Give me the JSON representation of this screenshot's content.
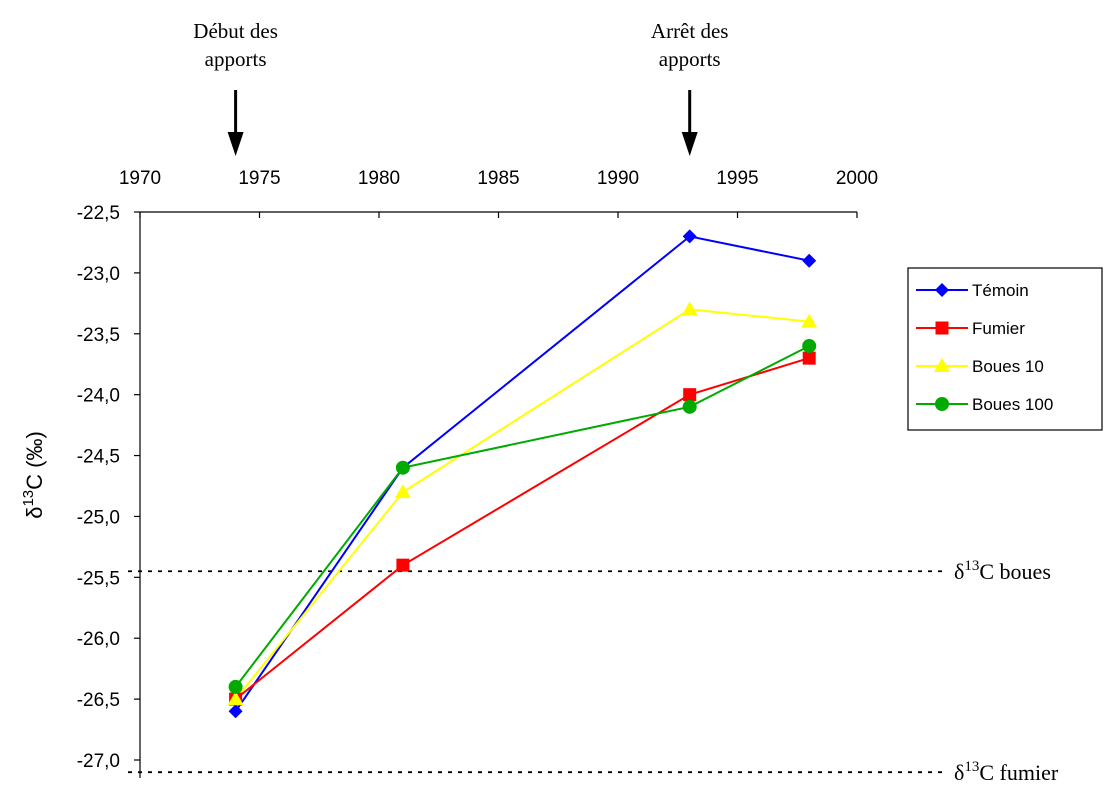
{
  "chart_data": {
    "type": "line",
    "ylabel": "δ13C (‰)",
    "ylabel_parts": {
      "base": "δ",
      "sup": "13",
      "rest": "C (‰)"
    },
    "x_axis_position": "top",
    "xlim": [
      1970,
      2000
    ],
    "xticks": [
      1970,
      1975,
      1980,
      1985,
      1990,
      1995,
      2000
    ],
    "ylim": [
      -27.0,
      -22.5
    ],
    "yticks": [
      "-22,5",
      "-23,0",
      "-23,5",
      "-24,0",
      "-24,5",
      "-25,0",
      "-25,5",
      "-26,0",
      "-26,5",
      "-27,0"
    ],
    "ytick_values": [
      -22.5,
      -23.0,
      -23.5,
      -24.0,
      -24.5,
      -25.0,
      -25.5,
      -26.0,
      -26.5,
      -27.0
    ],
    "grid": false,
    "legend_position": "right",
    "series": [
      {
        "name": "Témoin",
        "color": "#0000ff",
        "marker": "diamond",
        "x": [
          1974,
          1981,
          1993,
          1998
        ],
        "y": [
          -26.6,
          -24.6,
          -22.7,
          -22.9
        ]
      },
      {
        "name": "Fumier",
        "color": "#ff0000",
        "marker": "square",
        "x": [
          1974,
          1981,
          1993,
          1998
        ],
        "y": [
          -26.5,
          -25.4,
          -24.0,
          -23.7
        ]
      },
      {
        "name": "Boues 10",
        "color": "#ffff00",
        "marker": "triangle",
        "x": [
          1974,
          1981,
          1993,
          1998
        ],
        "y": [
          -26.5,
          -24.8,
          -23.3,
          -23.4
        ]
      },
      {
        "name": "Boues 100",
        "color": "#00aa00",
        "marker": "circle",
        "x": [
          1974,
          1981,
          1993,
          1998
        ],
        "y": [
          -26.4,
          -24.6,
          -24.1,
          -23.6
        ]
      }
    ],
    "reference_lines": [
      {
        "label_base": "δ",
        "label_sup": "13",
        "label_rest": "C boues",
        "y": -25.45
      },
      {
        "label_base": "δ",
        "label_sup": "13",
        "label_rest": "C fumier",
        "y": -27.1
      }
    ],
    "annotations": [
      {
        "line1": "Début des",
        "line2": "apports",
        "x": 1974
      },
      {
        "line1": "Arrêt des",
        "line2": "apports",
        "x": 1993
      }
    ]
  }
}
